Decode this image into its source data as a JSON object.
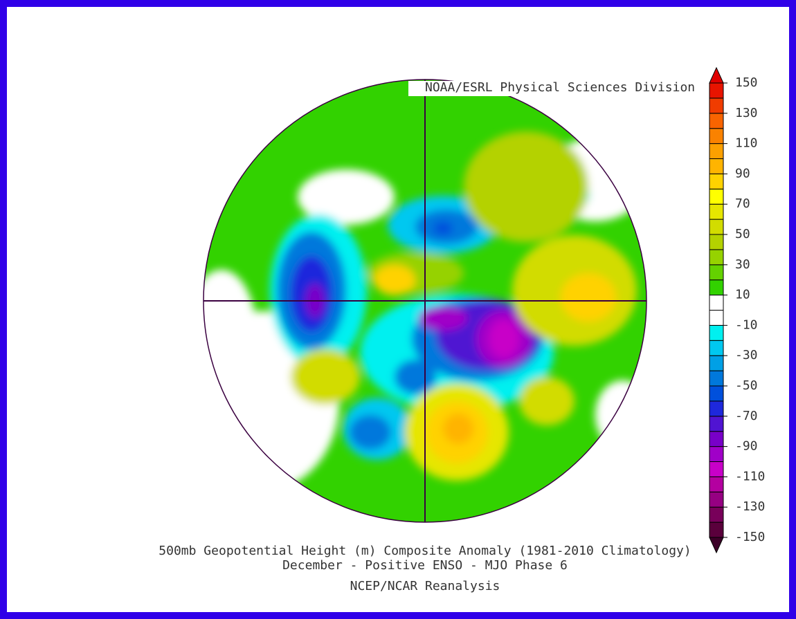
{
  "credit": "NOAA/ESRL Physical Sciences Division",
  "title": "500mb Geopotential Height (m) Composite Anomaly (1981-2010 Climatology)",
  "subtitle": "December - Positive ENSO - MJO Phase 6",
  "source": "NCEP/NCAR Reanalysis",
  "colorbar": {
    "range": [
      -150,
      150
    ],
    "ticks": [
      150,
      130,
      110,
      90,
      70,
      50,
      30,
      10,
      -10,
      -30,
      -50,
      -70,
      -90,
      -110,
      -130,
      -150
    ],
    "colors": [
      "#5a003c",
      "#78005a",
      "#960082",
      "#b400a0",
      "#c800c8",
      "#a000c8",
      "#7800c8",
      "#5014d2",
      "#1e28dc",
      "#0050dc",
      "#0078dc",
      "#00a0e6",
      "#00c8f0",
      "#00f0f0",
      "#ffffff",
      "#ffffff",
      "#32d200",
      "#64d200",
      "#96d200",
      "#b4d200",
      "#d2dc00",
      "#e6e600",
      "#ffff00",
      "#ffd200",
      "#ffb400",
      "#fca000",
      "#fa8200",
      "#f86400",
      "#f03c00",
      "#e81400"
    ],
    "under_color": "#3c0028",
    "over_color": "#e00000"
  }
}
